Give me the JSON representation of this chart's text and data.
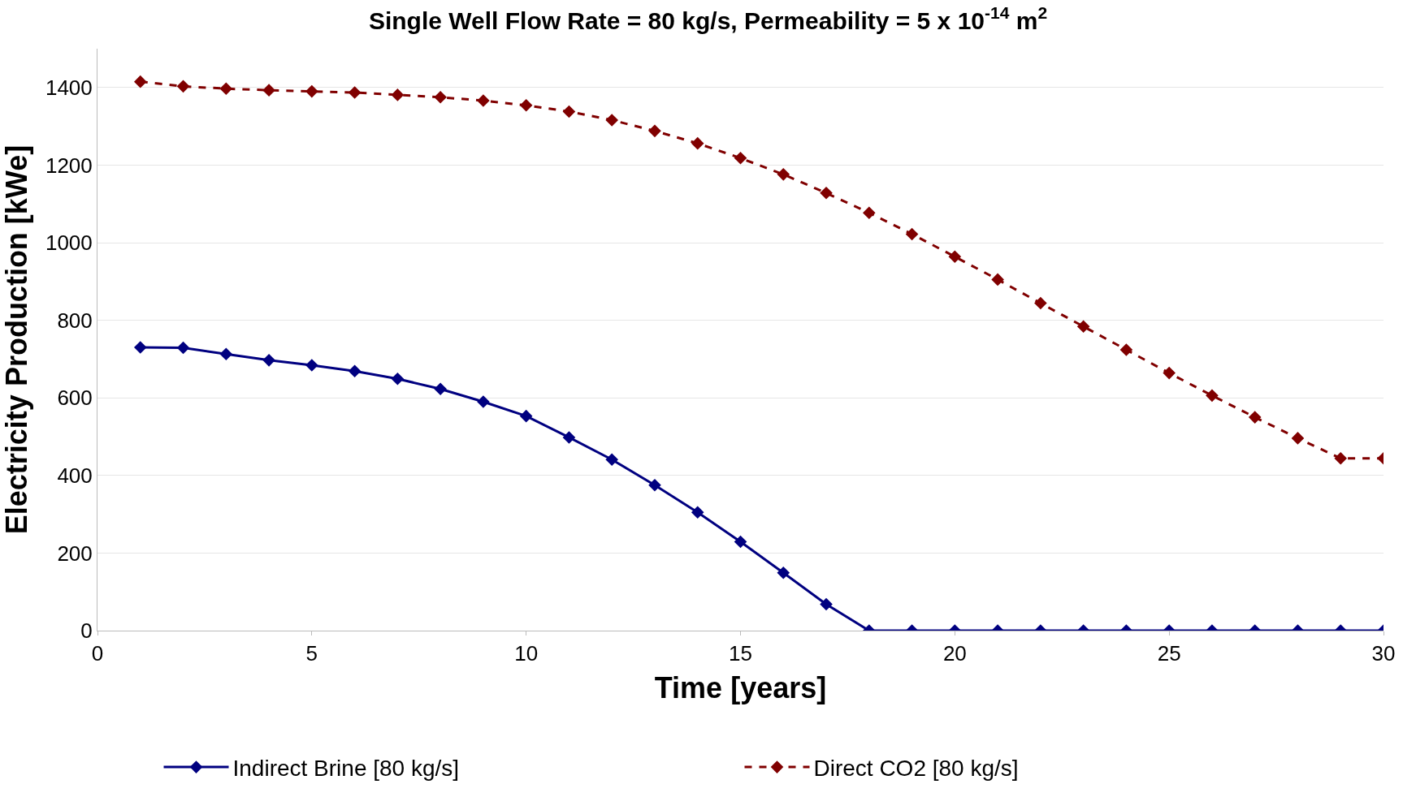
{
  "chart_data": {
    "type": "line",
    "title": "Single Well Flow Rate = 80 kg/s, Permeability = 5 x 10$^{-14}$ m$^{2}$",
    "xlabel": "Time [years]",
    "ylabel": "Electricity Production [kWe]",
    "x": [
      1,
      2,
      3,
      4,
      5,
      6,
      7,
      8,
      9,
      10,
      11,
      12,
      13,
      14,
      15,
      16,
      17,
      18,
      19,
      20,
      21,
      22,
      23,
      24,
      25,
      26,
      27,
      28,
      29,
      30
    ],
    "series": [
      {
        "name": "Indirect Brine [80 kg/s]",
        "color": "#000080",
        "line_style": "solid",
        "values": [
          730,
          729,
          713,
          697,
          684,
          669,
          649,
          623,
          590,
          553,
          498,
          441,
          375,
          305,
          229,
          149,
          68,
          0,
          0,
          0,
          0,
          0,
          0,
          0,
          0,
          0,
          0,
          0,
          0,
          0
        ]
      },
      {
        "name": "Direct CO2 [80 kg/s]",
        "color": "#800000",
        "line_style": "dashed",
        "values": [
          1415,
          1403,
          1397,
          1393,
          1390,
          1387,
          1381,
          1375,
          1366,
          1354,
          1338,
          1316,
          1288,
          1256,
          1218,
          1176,
          1128,
          1077,
          1022,
          964,
          905,
          844,
          784,
          724,
          664,
          606,
          550,
          496,
          444,
          444
        ]
      }
    ],
    "xlim": [
      0,
      30
    ],
    "xticks": [
      0,
      5,
      10,
      15,
      20,
      25,
      30
    ],
    "ylim": [
      0,
      1500
    ],
    "yticks": [
      0,
      200,
      400,
      600,
      800,
      1000,
      1200,
      1400
    ],
    "grid": "y",
    "legend": "bottom",
    "marker": "diamond"
  }
}
